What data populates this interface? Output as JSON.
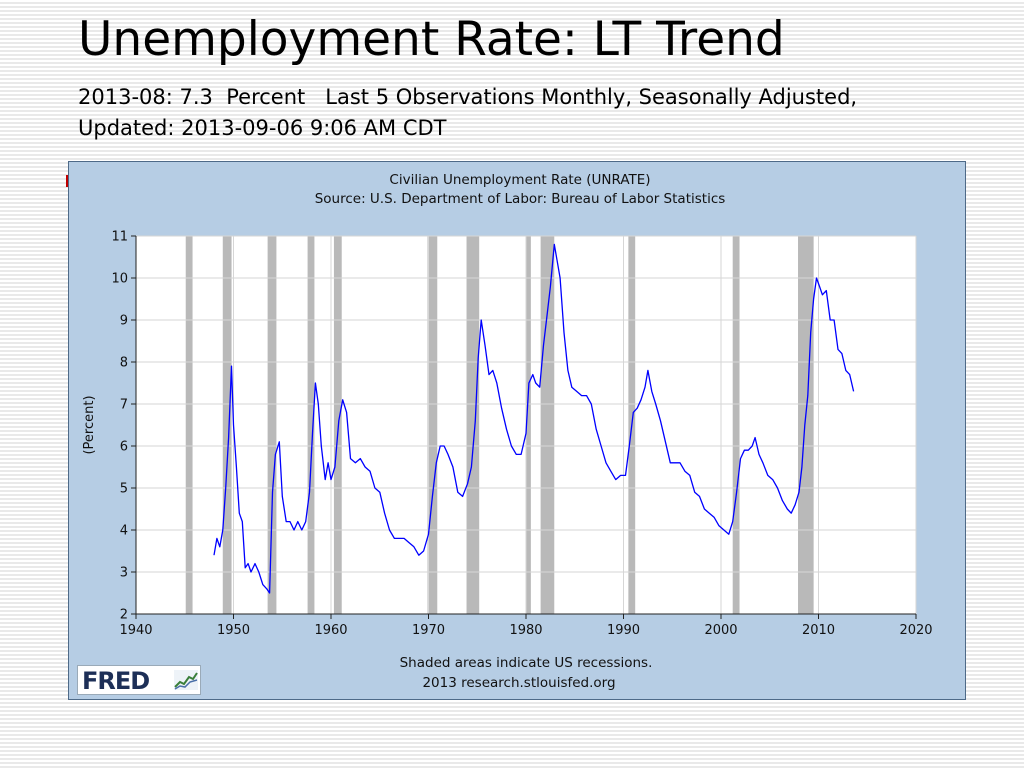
{
  "slide": {
    "title": "Unemployment Rate: LT Trend",
    "subtitle": "2013-08: 7.3  Percent   Last 5 Observations Monthly, Seasonally Adjusted, Updated: 2013-09-06 9:06 AM CDT"
  },
  "logo": {
    "text": "FRED",
    "icon": "chart-line-icon"
  },
  "colors": {
    "series": "#0000ff",
    "recession": "#b9b9b9",
    "frame": "#b6cde4",
    "plot": "#ffffff"
  },
  "chart_data": {
    "type": "line",
    "title": "Civilian Unemployment Rate (UNRATE)",
    "subtitle": "Source: U.S. Department of Labor: Bureau of Labor Statistics",
    "xlabel": "",
    "ylabel": "(Percent)",
    "xlim": [
      1940,
      2020
    ],
    "ylim": [
      2,
      11
    ],
    "xticks": [
      1940,
      1950,
      1960,
      1970,
      1980,
      1990,
      2000,
      2010,
      2020
    ],
    "yticks": [
      2,
      3,
      4,
      5,
      6,
      7,
      8,
      9,
      10,
      11
    ],
    "grid": true,
    "legend": "none",
    "footer": [
      "Shaded areas indicate US recessions.",
      "2013 research.stlouisfed.org"
    ],
    "recessions": [
      [
        1945.1,
        1945.8
      ],
      [
        1948.9,
        1949.8
      ],
      [
        1953.5,
        1954.4
      ],
      [
        1957.6,
        1958.3
      ],
      [
        1960.3,
        1961.1
      ],
      [
        1969.9,
        1970.9
      ],
      [
        1973.9,
        1975.2
      ],
      [
        1980.0,
        1980.5
      ],
      [
        1981.5,
        1982.9
      ],
      [
        1990.5,
        1991.2
      ],
      [
        2001.2,
        2001.9
      ],
      [
        2007.9,
        2009.5
      ]
    ],
    "series": [
      {
        "x": [
          1948.0,
          1948.3,
          1948.6,
          1948.9,
          1949.2,
          1949.5,
          1949.8,
          1950.0,
          1950.3,
          1950.6,
          1950.9,
          1951.2,
          1951.5,
          1951.8,
          1952.2,
          1952.6,
          1953.0,
          1953.4,
          1953.7,
          1954.0,
          1954.3,
          1954.7,
          1955.0,
          1955.4,
          1955.8,
          1956.2,
          1956.6,
          1957.0,
          1957.4,
          1957.8,
          1958.1,
          1958.4,
          1958.7,
          1959.0,
          1959.4,
          1959.7,
          1960.0,
          1960.4,
          1960.8,
          1961.2,
          1961.6,
          1962.0,
          1962.5,
          1963.0,
          1963.5,
          1964.0,
          1964.5,
          1965.0,
          1965.5,
          1966.0,
          1966.5,
          1967.0,
          1967.5,
          1968.0,
          1968.5,
          1969.0,
          1969.5,
          1970.0,
          1970.4,
          1970.8,
          1971.2,
          1971.6,
          1972.0,
          1972.5,
          1973.0,
          1973.5,
          1974.0,
          1974.4,
          1974.8,
          1975.1,
          1975.4,
          1975.8,
          1976.2,
          1976.6,
          1977.0,
          1977.5,
          1978.0,
          1978.5,
          1979.0,
          1979.5,
          1980.0,
          1980.3,
          1980.7,
          1981.0,
          1981.4,
          1981.8,
          1982.1,
          1982.5,
          1982.9,
          1983.2,
          1983.5,
          1983.9,
          1984.3,
          1984.7,
          1985.2,
          1985.7,
          1986.2,
          1986.7,
          1987.2,
          1987.7,
          1988.2,
          1988.7,
          1989.2,
          1989.7,
          1990.2,
          1990.6,
          1991.0,
          1991.4,
          1991.8,
          1992.2,
          1992.5,
          1992.9,
          1993.3,
          1993.8,
          1994.3,
          1994.8,
          1995.3,
          1995.8,
          1996.3,
          1996.8,
          1997.3,
          1997.8,
          1998.3,
          1998.8,
          1999.3,
          1999.8,
          2000.3,
          2000.8,
          2001.2,
          2001.6,
          2002.0,
          2002.4,
          2002.8,
          2003.2,
          2003.5,
          2003.9,
          2004.3,
          2004.8,
          2005.3,
          2005.8,
          2006.3,
          2006.8,
          2007.2,
          2007.6,
          2008.0,
          2008.3,
          2008.6,
          2008.9,
          2009.2,
          2009.5,
          2009.8,
          2010.1,
          2010.4,
          2010.8,
          2011.2,
          2011.6,
          2012.0,
          2012.4,
          2012.8,
          2013.2,
          2013.6
        ],
        "y": [
          3.4,
          3.8,
          3.6,
          4.0,
          5.0,
          6.2,
          7.9,
          6.5,
          5.5,
          4.4,
          4.2,
          3.1,
          3.2,
          3.0,
          3.2,
          3.0,
          2.7,
          2.6,
          2.5,
          4.9,
          5.8,
          6.1,
          4.8,
          4.2,
          4.2,
          4.0,
          4.2,
          4.0,
          4.2,
          4.9,
          6.3,
          7.5,
          7.0,
          6.0,
          5.2,
          5.6,
          5.2,
          5.5,
          6.6,
          7.1,
          6.8,
          5.7,
          5.6,
          5.7,
          5.5,
          5.4,
          5.0,
          4.9,
          4.4,
          4.0,
          3.8,
          3.8,
          3.8,
          3.7,
          3.6,
          3.4,
          3.5,
          3.9,
          4.8,
          5.6,
          6.0,
          6.0,
          5.8,
          5.5,
          4.9,
          4.8,
          5.1,
          5.5,
          6.6,
          8.1,
          9.0,
          8.4,
          7.7,
          7.8,
          7.5,
          6.9,
          6.4,
          6.0,
          5.8,
          5.8,
          6.3,
          7.5,
          7.7,
          7.5,
          7.4,
          8.4,
          9.0,
          9.8,
          10.8,
          10.4,
          10.0,
          8.7,
          7.8,
          7.4,
          7.3,
          7.2,
          7.2,
          7.0,
          6.4,
          6.0,
          5.6,
          5.4,
          5.2,
          5.3,
          5.3,
          6.0,
          6.8,
          6.9,
          7.1,
          7.4,
          7.8,
          7.3,
          7.0,
          6.6,
          6.1,
          5.6,
          5.6,
          5.6,
          5.4,
          5.3,
          4.9,
          4.8,
          4.5,
          4.4,
          4.3,
          4.1,
          4.0,
          3.9,
          4.2,
          4.9,
          5.7,
          5.9,
          5.9,
          6.0,
          6.2,
          5.8,
          5.6,
          5.3,
          5.2,
          5.0,
          4.7,
          4.5,
          4.4,
          4.6,
          4.9,
          5.5,
          6.5,
          7.2,
          8.7,
          9.5,
          10.0,
          9.8,
          9.6,
          9.7,
          9.0,
          9.0,
          8.3,
          8.2,
          7.8,
          7.7,
          7.3
        ]
      }
    ]
  }
}
